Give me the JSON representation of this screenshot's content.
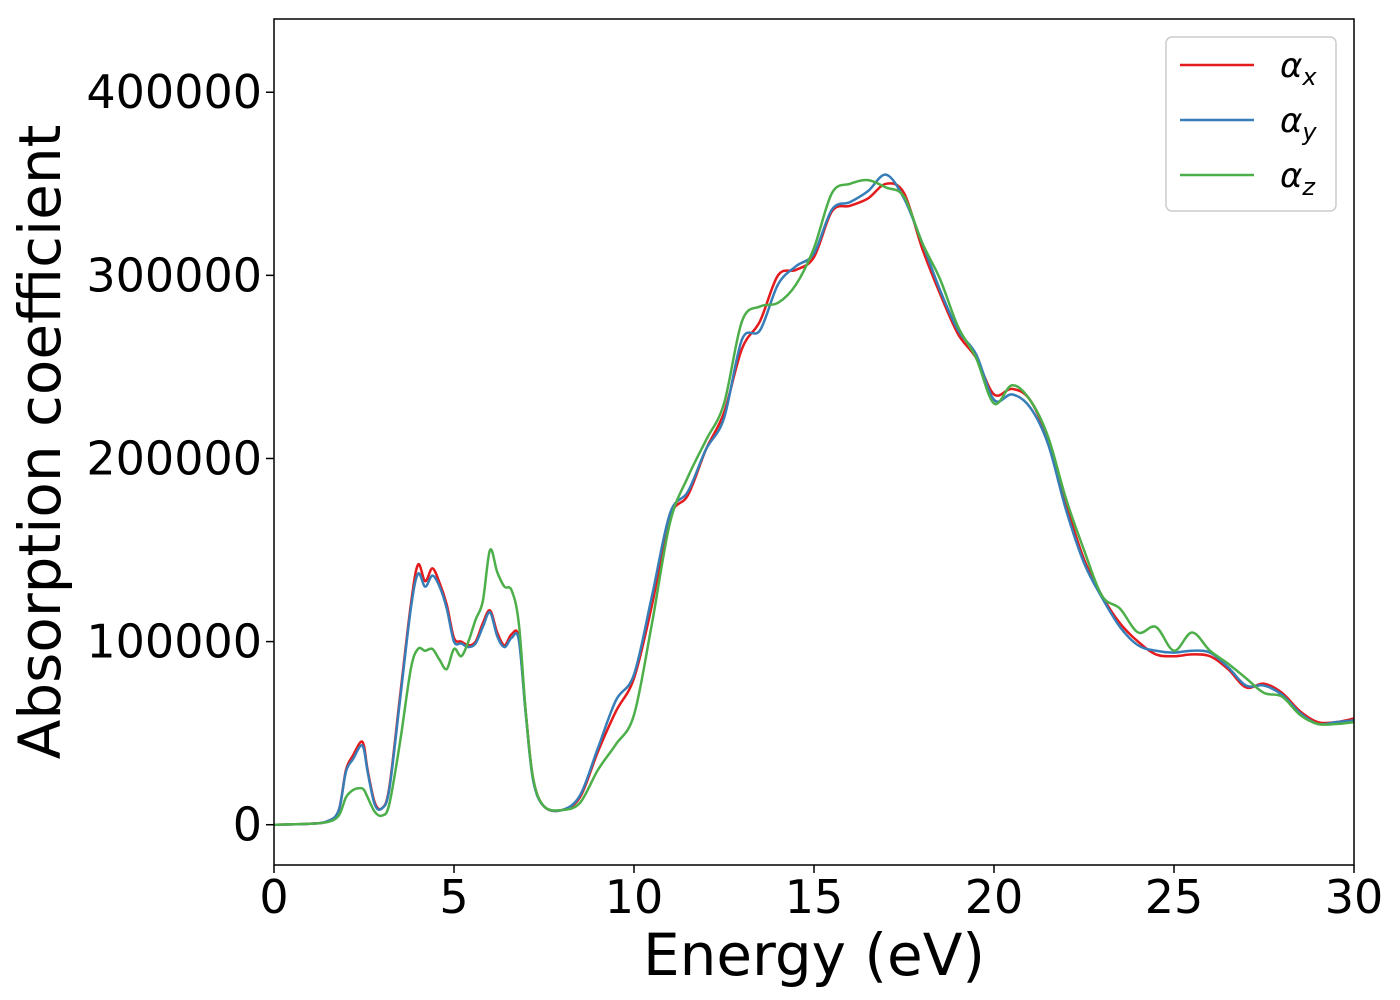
{
  "chart_data": {
    "type": "line",
    "title": "",
    "xlabel": "Energy (eV)",
    "ylabel": "Absorption coefficient",
    "xlim": [
      0,
      30
    ],
    "ylim": [
      -22000,
      440000
    ],
    "xticks": [
      0,
      5,
      10,
      15,
      20,
      25,
      30
    ],
    "yticks": [
      0,
      100000,
      200000,
      300000,
      400000
    ],
    "xtick_labels": [
      "0",
      "5",
      "10",
      "15",
      "20",
      "25",
      "30"
    ],
    "ytick_labels": [
      "0",
      "100000",
      "200000",
      "300000",
      "400000"
    ],
    "grid": false,
    "legend": {
      "placement": "top-right"
    },
    "series": [
      {
        "name": "α_x",
        "symbol": "α",
        "subscript": "x",
        "color": "#e41a1c",
        "x": [
          0,
          1,
          1.5,
          1.8,
          2.0,
          2.2,
          2.4,
          2.5,
          2.6,
          2.8,
          3.0,
          3.2,
          3.5,
          3.8,
          4.0,
          4.2,
          4.4,
          4.6,
          4.8,
          5.0,
          5.2,
          5.4,
          5.6,
          5.8,
          6.0,
          6.2,
          6.4,
          6.6,
          6.8,
          7.0,
          7.2,
          7.5,
          8.0,
          8.5,
          9.0,
          9.5,
          10.0,
          10.5,
          11.0,
          11.5,
          12.0,
          12.5,
          13.0,
          13.5,
          14.0,
          14.5,
          15.0,
          15.5,
          16.0,
          16.5,
          17.0,
          17.5,
          18.0,
          18.5,
          19.0,
          19.5,
          20.0,
          20.5,
          21.0,
          21.5,
          22.0,
          22.5,
          23.0,
          23.5,
          24.0,
          24.5,
          25.0,
          25.5,
          26.0,
          26.5,
          27.0,
          27.5,
          28.0,
          28.5,
          29.0,
          29.5,
          30.0
        ],
        "y": [
          0,
          500,
          2000,
          8000,
          30000,
          38000,
          45000,
          43000,
          30000,
          12000,
          9000,
          20000,
          70000,
          120000,
          142000,
          133000,
          140000,
          132000,
          120000,
          102000,
          100000,
          98000,
          100000,
          110000,
          117000,
          105000,
          98000,
          104000,
          102000,
          60000,
          25000,
          10000,
          8000,
          15000,
          40000,
          62000,
          80000,
          120000,
          168000,
          180000,
          205000,
          225000,
          260000,
          275000,
          300000,
          303000,
          310000,
          335000,
          338000,
          342000,
          350000,
          345000,
          315000,
          290000,
          268000,
          255000,
          235000,
          238000,
          232000,
          210000,
          175000,
          145000,
          125000,
          110000,
          100000,
          93000,
          92000,
          93000,
          92000,
          85000,
          75000,
          77000,
          72000,
          62000,
          56000,
          56000,
          58000
        ]
      },
      {
        "name": "α_y",
        "symbol": "α",
        "subscript": "y",
        "color": "#377eb8",
        "x": [
          0,
          1,
          1.5,
          1.8,
          2.0,
          2.2,
          2.4,
          2.5,
          2.6,
          2.8,
          3.0,
          3.2,
          3.5,
          3.8,
          4.0,
          4.2,
          4.4,
          4.6,
          4.8,
          5.0,
          5.2,
          5.4,
          5.6,
          5.8,
          6.0,
          6.2,
          6.4,
          6.6,
          6.8,
          7.0,
          7.2,
          7.5,
          8.0,
          8.5,
          9.0,
          9.5,
          10.0,
          10.5,
          11.0,
          11.5,
          12.0,
          12.5,
          13.0,
          13.5,
          14.0,
          14.5,
          15.0,
          15.5,
          16.0,
          16.5,
          17.0,
          17.5,
          18.0,
          18.5,
          19.0,
          19.5,
          20.0,
          20.5,
          21.0,
          21.5,
          22.0,
          22.5,
          23.0,
          23.5,
          24.0,
          24.5,
          25.0,
          25.5,
          26.0,
          26.5,
          27.0,
          27.5,
          28.0,
          28.5,
          29.0,
          29.5,
          30.0
        ],
        "y": [
          0,
          500,
          2000,
          8000,
          29000,
          36000,
          43000,
          41000,
          29000,
          11000,
          9000,
          19000,
          68000,
          118000,
          137000,
          130000,
          136000,
          130000,
          118000,
          100000,
          99000,
          97000,
          99000,
          108000,
          116000,
          103000,
          97000,
          102000,
          101000,
          59000,
          24000,
          10000,
          8000,
          16000,
          42000,
          68000,
          82000,
          125000,
          170000,
          182000,
          205000,
          222000,
          265000,
          270000,
          295000,
          305000,
          312000,
          336000,
          340000,
          346000,
          355000,
          342000,
          318000,
          292000,
          270000,
          257000,
          232000,
          235000,
          228000,
          208000,
          172000,
          143000,
          124000,
          108000,
          98000,
          95000,
          94000,
          95000,
          94000,
          86000,
          76000,
          76000,
          71000,
          61000,
          55000,
          56000,
          57000
        ]
      },
      {
        "name": "α_z",
        "symbol": "α",
        "subscript": "z",
        "color": "#4daf4a",
        "x": [
          0,
          1,
          1.5,
          1.8,
          2.0,
          2.2,
          2.4,
          2.5,
          2.6,
          2.8,
          3.0,
          3.2,
          3.5,
          3.8,
          4.0,
          4.2,
          4.4,
          4.6,
          4.8,
          5.0,
          5.2,
          5.4,
          5.6,
          5.8,
          6.0,
          6.2,
          6.4,
          6.6,
          6.8,
          7.0,
          7.2,
          7.5,
          8.0,
          8.5,
          9.0,
          9.5,
          10.0,
          10.5,
          11.0,
          11.5,
          12.0,
          12.5,
          13.0,
          13.5,
          14.0,
          14.5,
          15.0,
          15.5,
          16.0,
          16.5,
          17.0,
          17.5,
          18.0,
          18.5,
          19.0,
          19.5,
          20.0,
          20.5,
          21.0,
          21.5,
          22.0,
          22.5,
          23.0,
          23.5,
          24.0,
          24.5,
          25.0,
          25.5,
          26.0,
          26.5,
          27.0,
          27.5,
          28.0,
          28.5,
          29.0,
          29.5,
          30.0
        ],
        "y": [
          0,
          500,
          1500,
          5000,
          15000,
          19000,
          20000,
          19000,
          15000,
          7000,
          5000,
          11000,
          45000,
          85000,
          96000,
          95000,
          96000,
          90000,
          85000,
          96000,
          92000,
          100000,
          112000,
          122000,
          150000,
          138000,
          130000,
          128000,
          110000,
          60000,
          25000,
          10000,
          8000,
          12000,
          30000,
          44000,
          60000,
          110000,
          165000,
          190000,
          210000,
          230000,
          275000,
          283000,
          285000,
          295000,
          315000,
          345000,
          350000,
          352000,
          348000,
          343000,
          318000,
          298000,
          272000,
          255000,
          230000,
          240000,
          232000,
          212000,
          178000,
          150000,
          125000,
          118000,
          105000,
          108000,
          95000,
          105000,
          95000,
          88000,
          80000,
          72000,
          70000,
          60000,
          55000,
          55000,
          56000
        ]
      }
    ]
  }
}
